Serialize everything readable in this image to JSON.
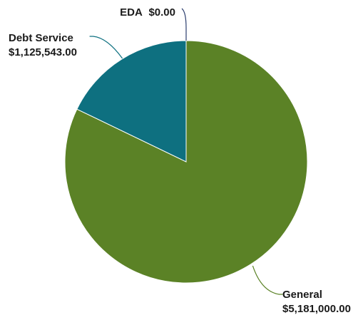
{
  "chart_data": {
    "type": "pie",
    "title": "",
    "slices": [
      {
        "category": "General",
        "value_label": "$5,181,000.00",
        "value": 5181000.0,
        "color": "#5b8226"
      },
      {
        "category": "EDA",
        "value_label": "$0.00",
        "value": 0.0,
        "color": "#2c3e6e"
      },
      {
        "category": "Debt Service",
        "value_label": "$1,125,543.00",
        "value": 1125543.0,
        "color": "#0e7080"
      }
    ],
    "legend": "none",
    "labels": "outside-with-leader-lines"
  }
}
